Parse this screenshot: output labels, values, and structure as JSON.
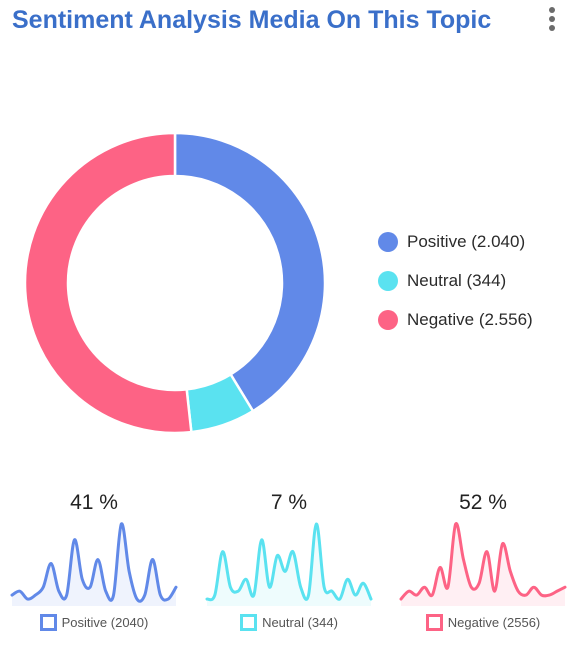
{
  "header": {
    "title": "Sentiment Analysis Media On This Topic",
    "menu_icon": "more-vertical-icon"
  },
  "colors": {
    "title": "#3a6fc9",
    "positive": "#6189e8",
    "neutral": "#5ae2f0",
    "negative": "#fd6385"
  },
  "chart_data": [
    {
      "type": "pie",
      "variant": "donut",
      "legend_position": "right",
      "slices": [
        {
          "key": "positive",
          "legend_label": "Positive (2.040)",
          "value": 2040
        },
        {
          "key": "neutral",
          "legend_label": "Neutral (344)",
          "value": 344
        },
        {
          "key": "negative",
          "legend_label": "Negative (2.556)",
          "value": 2556
        }
      ]
    },
    {
      "type": "area",
      "key": "positive",
      "percent_label": "41 %",
      "legend_label": "Positive (2040)",
      "values": [
        2,
        3,
        1,
        2,
        4,
        10,
        3,
        2,
        16,
        6,
        4,
        11,
        3,
        2,
        20,
        8,
        1,
        2,
        11,
        2,
        1,
        4
      ]
    },
    {
      "type": "area",
      "key": "neutral",
      "percent_label": "7 %",
      "legend_label": "Neutral (344)",
      "values": [
        1,
        2,
        13,
        4,
        3,
        6,
        2,
        16,
        4,
        12,
        8,
        13,
        4,
        2,
        20,
        4,
        3,
        1,
        6,
        2,
        5,
        1
      ]
    },
    {
      "type": "area",
      "key": "negative",
      "percent_label": "52 %",
      "legend_label": "Negative (2556)",
      "values": [
        1,
        3,
        2,
        4,
        2,
        9,
        4,
        20,
        11,
        4,
        5,
        13,
        3,
        15,
        8,
        3,
        2,
        4,
        2,
        2,
        3,
        4
      ]
    }
  ]
}
